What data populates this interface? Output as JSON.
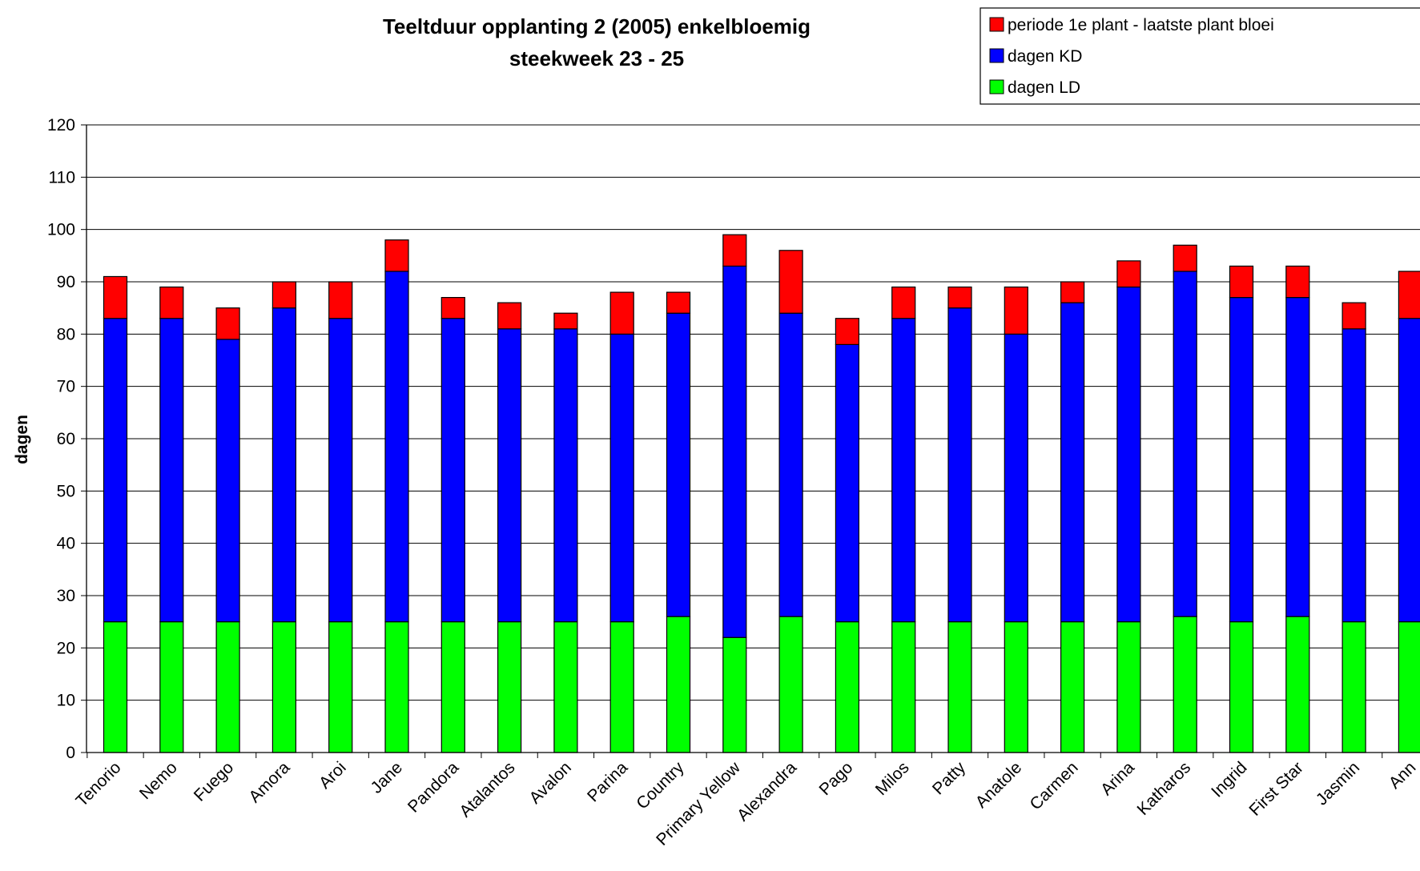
{
  "chart_data": {
    "type": "bar",
    "stacked": true,
    "title_lines": [
      "Teeltduur opplanting 2 (2005) enkelbloemig",
      "steekweek 23 - 25"
    ],
    "xlabel": "",
    "ylabel": "dagen",
    "ylim": [
      0,
      120
    ],
    "yticks": [
      0,
      10,
      20,
      30,
      40,
      50,
      60,
      70,
      80,
      90,
      100,
      110,
      120
    ],
    "grid": true,
    "legend_position": "top-right",
    "categories": [
      "Tenorio",
      "Nemo",
      "Fuego",
      "Amora",
      "Aroi",
      "Jane",
      "Pandora",
      "Atalantos",
      "Avalon",
      "Parina",
      "Country",
      "Primary Yellow",
      "Alexandra",
      "Pago",
      "Milos",
      "Patty",
      "Anatole",
      "Carmen",
      "Arina",
      "Katharos",
      "Ingrid",
      "First Star",
      "Jasmin",
      "Ann"
    ],
    "series": [
      {
        "name": "dagen LD",
        "color": "#00ff00",
        "values": [
          25,
          25,
          25,
          25,
          25,
          25,
          25,
          25,
          25,
          25,
          26,
          22,
          26,
          25,
          25,
          25,
          25,
          25,
          25,
          26,
          25,
          26,
          25,
          25
        ]
      },
      {
        "name": "dagen KD",
        "color": "#0000ff",
        "values": [
          58,
          58,
          54,
          60,
          58,
          67,
          58,
          56,
          56,
          55,
          58,
          71,
          58,
          53,
          58,
          60,
          55,
          61,
          64,
          66,
          62,
          61,
          56,
          58
        ]
      },
      {
        "name": "periode 1e plant - laatste plant bloei",
        "color": "#ff0000",
        "values": [
          8,
          6,
          6,
          5,
          7,
          6,
          4,
          5,
          3,
          8,
          4,
          6,
          12,
          5,
          6,
          4,
          9,
          4,
          5,
          5,
          6,
          6,
          5,
          9
        ]
      }
    ],
    "legend_order": [
      "periode 1e plant - laatste plant bloei",
      "dagen KD",
      "dagen LD"
    ]
  }
}
